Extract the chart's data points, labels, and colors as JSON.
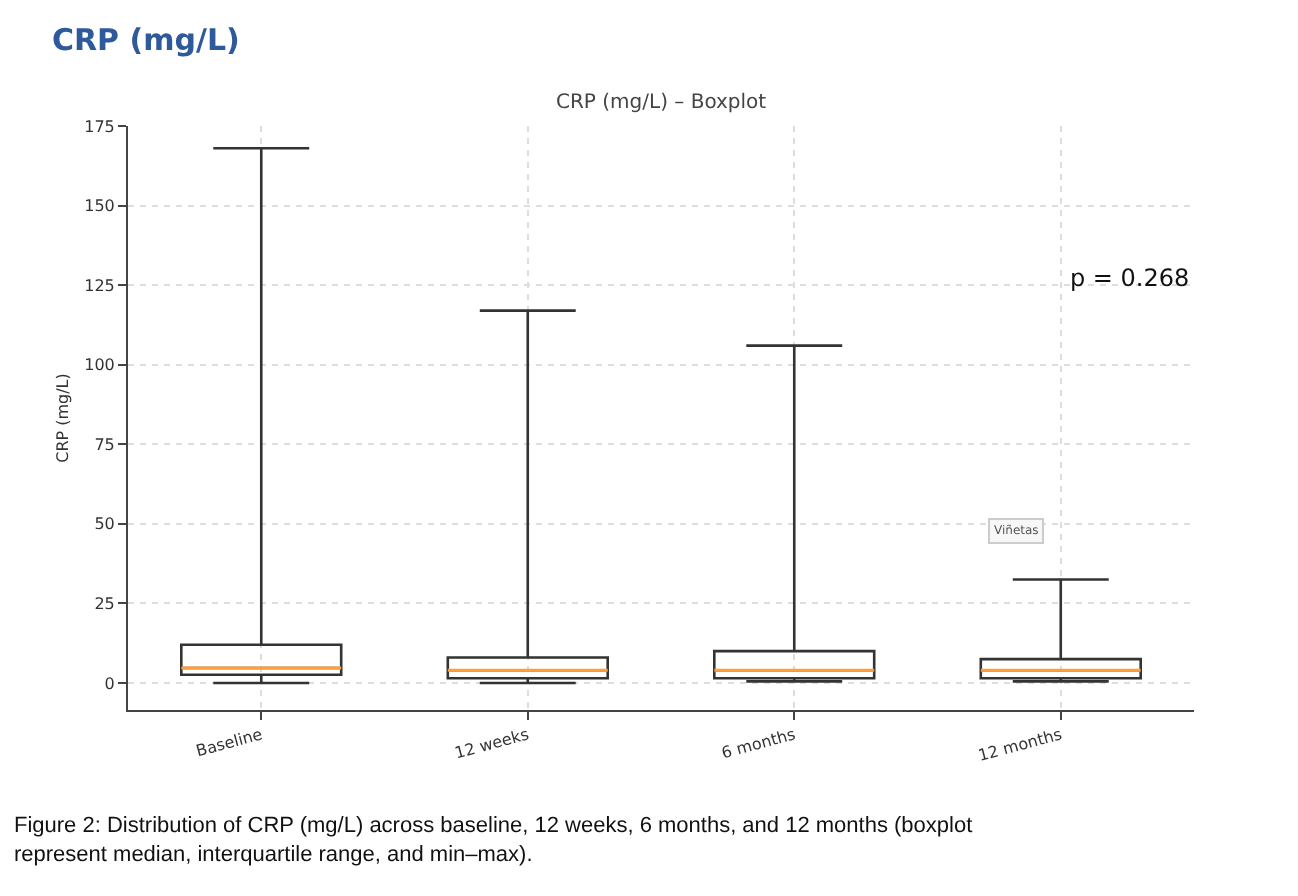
{
  "chart_data": {
    "type": "box",
    "title": "CRP (mg/L)",
    "subtitle": "CRP (mg/L) – Boxplot",
    "ylabel": "CRP (mg/L)",
    "categories": [
      "Baseline",
      "12 weeks",
      "6 months",
      "12 months"
    ],
    "boxes": [
      {
        "low": 0,
        "q1": 2.6,
        "median": 4.7,
        "q3": 12,
        "high": 168
      },
      {
        "low": 0,
        "q1": 1.5,
        "median": 4,
        "q3": 8,
        "high": 117
      },
      {
        "low": 0.5,
        "q1": 1.5,
        "median": 4,
        "q3": 10,
        "high": 106
      },
      {
        "low": 0.5,
        "q1": 1.5,
        "median": 4,
        "q3": 7.5,
        "high": 32.5
      }
    ],
    "color": "#333333",
    "ylim": [
      -8.5,
      175
    ],
    "yticks": [
      0,
      25,
      50,
      75,
      100,
      125,
      150,
      175
    ],
    "grid": true,
    "annotations": [
      "p = 0.268",
      "Viñetas",
      "Figure 2: Distribution of CRP (mg/L) across baseline, 12 weeks, 6 months, and 12 months (boxplot represent median, interquartile range, and min–max)."
    ]
  }
}
